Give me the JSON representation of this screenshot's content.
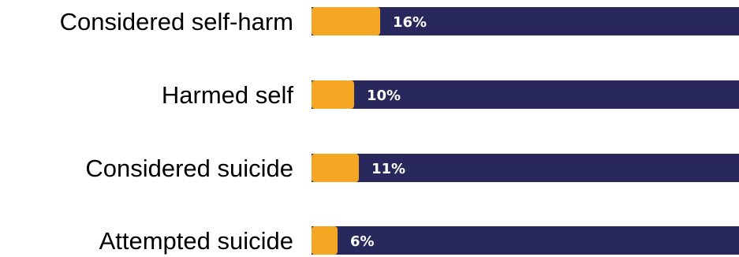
{
  "chart_data": {
    "type": "bar",
    "orientation": "horizontal",
    "stacked": true,
    "categories": [
      "Considered self-harm",
      "Harmed self",
      "Considered suicide",
      "Attempted suicide"
    ],
    "values": [
      16,
      10,
      11,
      6
    ],
    "value_labels": [
      "16%",
      "10%",
      "11%",
      "6%"
    ],
    "total": 100,
    "xlim": [
      0,
      100
    ],
    "title": "",
    "xlabel": "",
    "ylabel": "",
    "grid": false,
    "legend": false,
    "colors": {
      "value": "#f5a623",
      "remainder": "#28285c",
      "value_text": "#ffffff",
      "category_text": "#000000"
    }
  }
}
